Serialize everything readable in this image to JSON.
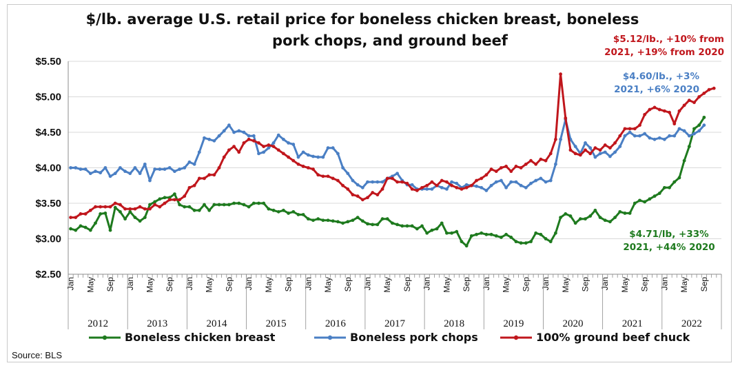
{
  "chart_data": {
    "type": "line",
    "title_lines": [
      "$/lb. average U.S. retail price for boneless chicken breast, boneless",
      "pork chops, and ground beef"
    ],
    "ylim": [
      2.5,
      5.5
    ],
    "y_ticks": [
      "$2.50",
      "$3.00",
      "$3.50",
      "$4.00",
      "$4.50",
      "$5.00",
      "$5.50"
    ],
    "month_ticks": [
      "Jan",
      "May",
      "Sep"
    ],
    "years": [
      "2012",
      "2013",
      "2014",
      "2015",
      "2016",
      "2017",
      "2018",
      "2019",
      "2020",
      "2021",
      "2022"
    ],
    "x_start": "2012-01",
    "grid": "horizontal",
    "legend_position": "bottom",
    "source": "Source: BLS",
    "series": [
      {
        "name": "Boneless chicken breast",
        "color": "#1e7a1e",
        "values": [
          3.14,
          3.12,
          3.18,
          3.16,
          3.12,
          3.22,
          3.35,
          3.36,
          3.12,
          3.44,
          3.38,
          3.28,
          3.38,
          3.3,
          3.25,
          3.3,
          3.48,
          3.52,
          3.56,
          3.58,
          3.58,
          3.63,
          3.48,
          3.45,
          3.45,
          3.4,
          3.4,
          3.48,
          3.4,
          3.48,
          3.48,
          3.48,
          3.48,
          3.5,
          3.5,
          3.48,
          3.45,
          3.5,
          3.5,
          3.5,
          3.42,
          3.4,
          3.38,
          3.4,
          3.36,
          3.38,
          3.34,
          3.34,
          3.28,
          3.26,
          3.28,
          3.26,
          3.26,
          3.25,
          3.24,
          3.22,
          3.24,
          3.26,
          3.3,
          3.25,
          3.21,
          3.2,
          3.2,
          3.28,
          3.28,
          3.22,
          3.2,
          3.18,
          3.18,
          3.18,
          3.14,
          3.18,
          3.08,
          3.12,
          3.14,
          3.22,
          3.08,
          3.08,
          3.1,
          2.96,
          2.9,
          3.04,
          3.06,
          3.08,
          3.06,
          3.06,
          3.04,
          3.02,
          3.06,
          3.02,
          2.96,
          2.94,
          2.94,
          2.96,
          3.08,
          3.06,
          3.0,
          2.96,
          3.08,
          3.3,
          3.35,
          3.32,
          3.22,
          3.28,
          3.28,
          3.32,
          3.4,
          3.3,
          3.26,
          3.24,
          3.3,
          3.38,
          3.36,
          3.36,
          3.5,
          3.54,
          3.52,
          3.56,
          3.6,
          3.64,
          3.72,
          3.72,
          3.8,
          3.86,
          4.1,
          4.3,
          4.55,
          4.6,
          4.71
        ]
      },
      {
        "name": "Boneless pork chops",
        "color": "#4a7fc4",
        "values": [
          4.0,
          4.0,
          3.98,
          3.98,
          3.92,
          3.95,
          3.93,
          4.0,
          3.88,
          3.92,
          4.0,
          3.95,
          3.92,
          4.0,
          3.92,
          4.05,
          3.82,
          3.98,
          3.98,
          3.98,
          4.0,
          3.95,
          3.98,
          4.0,
          4.08,
          4.05,
          4.22,
          4.42,
          4.4,
          4.38,
          4.45,
          4.52,
          4.6,
          4.5,
          4.52,
          4.5,
          4.45,
          4.45,
          4.2,
          4.22,
          4.28,
          4.35,
          4.46,
          4.4,
          4.35,
          4.33,
          4.15,
          4.22,
          4.18,
          4.16,
          4.15,
          4.15,
          4.28,
          4.28,
          4.2,
          4.0,
          3.92,
          3.82,
          3.76,
          3.72,
          3.8,
          3.8,
          3.8,
          3.8,
          3.85,
          3.88,
          3.92,
          3.82,
          3.76,
          3.76,
          3.7,
          3.7,
          3.7,
          3.7,
          3.75,
          3.72,
          3.7,
          3.8,
          3.78,
          3.72,
          3.76,
          3.75,
          3.74,
          3.72,
          3.68,
          3.75,
          3.8,
          3.82,
          3.72,
          3.8,
          3.8,
          3.75,
          3.72,
          3.78,
          3.82,
          3.85,
          3.8,
          3.82,
          4.05,
          4.4,
          4.68,
          4.4,
          4.3,
          4.2,
          4.35,
          4.28,
          4.15,
          4.2,
          4.22,
          4.16,
          4.22,
          4.3,
          4.45,
          4.5,
          4.45,
          4.45,
          4.48,
          4.42,
          4.4,
          4.42,
          4.4,
          4.45,
          4.45,
          4.55,
          4.52,
          4.45,
          4.48,
          4.52,
          4.6
        ]
      },
      {
        "name": "100% ground beef chuck",
        "color": "#c0161c",
        "values": [
          3.3,
          3.3,
          3.35,
          3.35,
          3.4,
          3.45,
          3.45,
          3.45,
          3.45,
          3.5,
          3.48,
          3.42,
          3.42,
          3.42,
          3.45,
          3.42,
          3.42,
          3.48,
          3.45,
          3.5,
          3.55,
          3.55,
          3.55,
          3.6,
          3.72,
          3.75,
          3.85,
          3.85,
          3.9,
          3.9,
          4.0,
          4.15,
          4.25,
          4.3,
          4.22,
          4.35,
          4.4,
          4.38,
          4.35,
          4.3,
          4.32,
          4.3,
          4.25,
          4.2,
          4.15,
          4.1,
          4.05,
          4.02,
          4.0,
          3.98,
          3.9,
          3.88,
          3.88,
          3.85,
          3.82,
          3.75,
          3.7,
          3.62,
          3.6,
          3.55,
          3.58,
          3.65,
          3.62,
          3.7,
          3.85,
          3.85,
          3.8,
          3.8,
          3.78,
          3.7,
          3.68,
          3.72,
          3.75,
          3.8,
          3.75,
          3.82,
          3.8,
          3.75,
          3.72,
          3.7,
          3.72,
          3.75,
          3.82,
          3.85,
          3.9,
          3.98,
          3.95,
          4.0,
          4.02,
          3.95,
          4.02,
          4.0,
          4.05,
          4.1,
          4.05,
          4.12,
          4.1,
          4.2,
          4.4,
          5.32,
          4.7,
          4.25,
          4.2,
          4.18,
          4.25,
          4.2,
          4.28,
          4.25,
          4.32,
          4.28,
          4.35,
          4.45,
          4.55,
          4.55,
          4.55,
          4.6,
          4.75,
          4.82,
          4.85,
          4.82,
          4.8,
          4.78,
          4.62,
          4.8,
          4.88,
          4.95,
          4.92,
          5.0,
          5.05,
          5.1,
          5.12
        ]
      }
    ],
    "annotations": [
      {
        "lines": [
          "$5.12/lb., +10% from",
          "2021, +19% from 2020"
        ],
        "color": "#c0161c"
      },
      {
        "lines": [
          "$4.60/lb., +3%",
          "2021, +6% 2020"
        ],
        "color": "#4a7fc4"
      },
      {
        "lines": [
          "$4.71/lb, +33%",
          "2021, +44% 2020"
        ],
        "color": "#1e7a1e"
      }
    ]
  }
}
